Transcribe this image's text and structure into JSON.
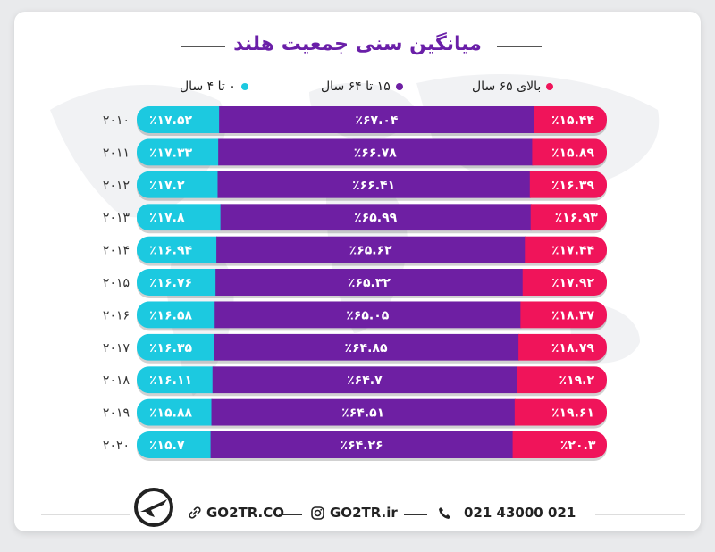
{
  "title": "میانگین سنی جمعیت هلند",
  "legend": [
    {
      "label": "بالای ۶۵ سال",
      "color": "#f0145a"
    },
    {
      "label": "۱۵ تا ۶۴ سال",
      "color": "#6e1fa3"
    },
    {
      "label": "۰ تا ۴ سال",
      "color": "#1cc9e0"
    }
  ],
  "chart_data": {
    "type": "bar",
    "stacked": true,
    "orientation": "horizontal",
    "categories": [
      "۲۰۱۰",
      "۲۰۱۱",
      "۲۰۱۲",
      "۲۰۱۳",
      "۲۰۱۴",
      "۲۰۱۵",
      "۲۰۱۶",
      "۲۰۱۷",
      "۲۰۱۸",
      "۲۰۱۹",
      "۲۰۲۰"
    ],
    "series": [
      {
        "name": "۰ تا ۴ سال",
        "color": "#1cc9e0",
        "values": [
          17.52,
          17.33,
          17.2,
          17.8,
          16.94,
          16.76,
          16.58,
          16.35,
          16.11,
          15.88,
          15.7
        ],
        "labels": [
          "٪۱۷.۵۲",
          "٪۱۷.۳۳",
          "٪۱۷.۲",
          "٪۱۷.۸",
          "٪۱۶.۹۴",
          "٪۱۶.۷۶",
          "٪۱۶.۵۸",
          "٪۱۶.۳۵",
          "٪۱۶.۱۱",
          "٪۱۵.۸۸",
          "٪۱۵.۷"
        ]
      },
      {
        "name": "۱۵ تا ۶۴ سال",
        "color": "#6e1fa3",
        "values": [
          67.04,
          66.78,
          66.41,
          65.99,
          65.62,
          65.32,
          65.05,
          64.85,
          64.7,
          64.51,
          64.26
        ],
        "labels": [
          "٪۶۷.۰۴",
          "٪۶۶.۷۸",
          "٪۶۶.۴۱",
          "٪۶۵.۹۹",
          "٪۶۵.۶۲",
          "٪۶۵.۳۲",
          "٪۶۵.۰۵",
          "٪۶۴.۸۵",
          "٪۶۴.۷",
          "٪۶۴.۵۱",
          "٪۶۴.۲۶"
        ]
      },
      {
        "name": "بالای ۶۵ سال",
        "color": "#f0145a",
        "values": [
          15.44,
          15.89,
          16.39,
          16.93,
          17.44,
          17.92,
          18.37,
          18.79,
          19.2,
          19.61,
          20.3
        ],
        "labels": [
          "٪۱۵.۴۴",
          "٪۱۵.۸۹",
          "٪۱۶.۳۹",
          "٪۱۶.۹۳",
          "٪۱۷.۴۴",
          "٪۱۷.۹۲",
          "٪۱۸.۳۷",
          "٪۱۸.۷۹",
          "٪۱۹.۲",
          "٪۱۹.۶۱",
          "٪۲۰.۳"
        ]
      }
    ],
    "xlim": [
      0,
      100
    ]
  },
  "footer": {
    "website": "GO2TR.CO",
    "instagram": "GO2TR.ir",
    "phone": "021 43000 021"
  },
  "icons": [
    "plane-logo-icon",
    "link-icon",
    "instagram-icon",
    "phone-icon"
  ]
}
